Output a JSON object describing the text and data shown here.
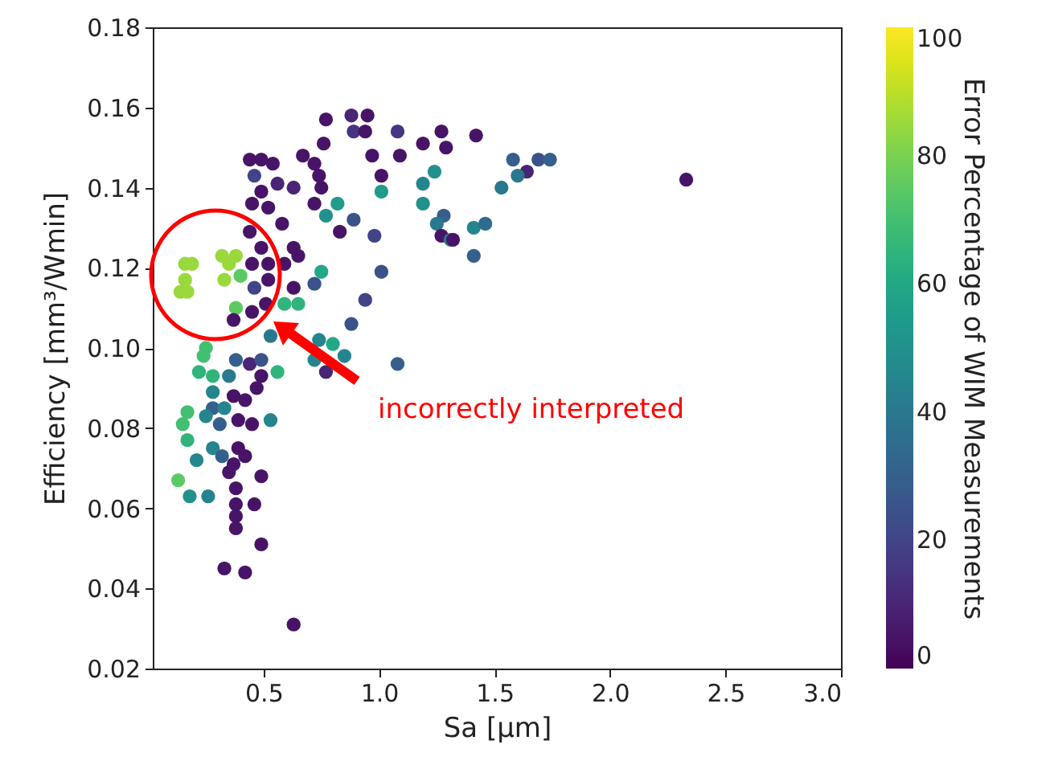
{
  "chart_data": {
    "type": "scatter",
    "xlabel": "Sa [µm]",
    "ylabel": "Efficiency [mm³/Wmin]",
    "clabel": "Error Percentage of WIM Measurements",
    "xlim": [
      0.02,
      3.0
    ],
    "xticks": [
      0.5,
      {
        "value": 1,
        "label": "1.0"
      },
      1.5,
      {
        "value": 2,
        "label": "2.0"
      },
      2.5,
      {
        "value": 3,
        "label": "3.0"
      }
    ],
    "ylim": [
      0.02,
      0.18
    ],
    "yticks": [
      0.02,
      0.04,
      0.06,
      0.08,
      {
        "value": 0.1,
        "label": "0.10"
      },
      0.12,
      0.14,
      0.16,
      0.18
    ],
    "clim": [
      0,
      100
    ],
    "cticks": [
      0,
      20,
      40,
      60,
      80,
      100
    ],
    "grid": false,
    "marker": "circle",
    "annotations": [
      "incorrectly interpreted"
    ],
    "series": [
      {
        "x": [
          0.77,
          0.88,
          0.95,
          0.89,
          0.94,
          1.08,
          1.27,
          1.29,
          1.19,
          0.76,
          0.67,
          0.97,
          1.09,
          0.44,
          0.49,
          0.54,
          0.72,
          0.74,
          1.01,
          0.46,
          0.56,
          0.49,
          0.63,
          0.75,
          0.82,
          0.77,
          0.72,
          1.01,
          1.24,
          1.19,
          1.19,
          1.28,
          1.25,
          1.27,
          1.31,
          0.89,
          0.83,
          0.98,
          0.45,
          0.52,
          0.44,
          0.58,
          0.49,
          0.63,
          0.45,
          0.52,
          0.59,
          0.65,
          0.46,
          0.52,
          0.63,
          0.75,
          0.72,
          1.01,
          0.94,
          0.65,
          0.59,
          0.51,
          0.45,
          0.38,
          0.88,
          0.37,
          0.53,
          0.74,
          0.8,
          0.16,
          0.19,
          0.16,
          0.17,
          0.14,
          0.32,
          0.38,
          0.35,
          0.33,
          0.4,
          1.42,
          1.58,
          1.69,
          1.74,
          1.64,
          1.6,
          1.53,
          1.41,
          1.46,
          1.32,
          1.41,
          2.33,
          1.08,
          0.85,
          0.72,
          0.77,
          0.25,
          0.24,
          0.38,
          0.44,
          0.49,
          0.22,
          0.28,
          0.35,
          0.49,
          0.56,
          0.47,
          0.28,
          0.37,
          0.42,
          0.28,
          0.33,
          0.17,
          0.39,
          0.45,
          0.53,
          0.15,
          0.25,
          0.31,
          0.17,
          0.28,
          0.39,
          0.32,
          0.42,
          0.21,
          0.37,
          0.35,
          0.49,
          0.13,
          0.38,
          0.18,
          0.26,
          0.38,
          0.46,
          0.38,
          0.38,
          0.49,
          0.33,
          0.42,
          0.63
        ],
        "values": [
          0.157,
          0.158,
          0.158,
          0.154,
          0.154,
          0.154,
          0.154,
          0.15,
          0.151,
          0.151,
          0.148,
          0.148,
          0.148,
          0.147,
          0.147,
          0.146,
          0.146,
          0.143,
          0.143,
          0.143,
          0.141,
          0.139,
          0.14,
          0.14,
          0.136,
          0.133,
          0.136,
          0.139,
          0.144,
          0.141,
          0.136,
          0.133,
          0.131,
          0.128,
          0.127,
          0.132,
          0.129,
          0.128,
          0.136,
          0.135,
          0.129,
          0.131,
          0.125,
          0.125,
          0.121,
          0.121,
          0.121,
          0.123,
          0.115,
          0.117,
          0.115,
          0.119,
          0.116,
          0.119,
          0.112,
          0.111,
          0.111,
          0.111,
          0.109,
          0.11,
          0.106,
          0.107,
          0.103,
          0.102,
          0.101,
          0.121,
          0.121,
          0.117,
          0.114,
          0.114,
          0.123,
          0.123,
          0.121,
          0.117,
          0.118,
          0.153,
          0.147,
          0.147,
          0.147,
          0.144,
          0.143,
          0.14,
          0.13,
          0.131,
          0.127,
          0.123,
          0.142,
          0.096,
          0.098,
          0.097,
          0.094,
          0.1,
          0.098,
          0.097,
          0.096,
          0.097,
          0.094,
          0.093,
          0.093,
          0.093,
          0.094,
          0.09,
          0.089,
          0.088,
          0.087,
          0.085,
          0.085,
          0.084,
          0.082,
          0.081,
          0.082,
          0.081,
          0.083,
          0.081,
          0.077,
          0.075,
          0.075,
          0.073,
          0.073,
          0.072,
          0.071,
          0.069,
          0.068,
          0.067,
          0.065,
          0.063,
          0.063,
          0.061,
          0.061,
          0.058,
          0.055,
          0.051,
          0.045,
          0.044,
          0.031
        ],
        "cvalues": [
          5,
          10,
          5,
          15,
          5,
          15,
          5,
          5,
          5,
          5,
          5,
          5,
          5,
          5,
          5,
          5,
          5,
          5,
          5,
          20,
          10,
          5,
          10,
          5,
          55,
          50,
          5,
          55,
          50,
          45,
          50,
          30,
          40,
          5,
          45,
          25,
          5,
          20,
          5,
          5,
          5,
          5,
          5,
          5,
          5,
          5,
          5,
          5,
          20,
          5,
          5,
          60,
          25,
          25,
          20,
          65,
          65,
          5,
          5,
          75,
          25,
          5,
          40,
          45,
          60,
          85,
          85,
          85,
          85,
          85,
          85,
          85,
          85,
          85,
          75,
          5,
          30,
          25,
          30,
          10,
          40,
          40,
          45,
          35,
          5,
          30,
          5,
          30,
          45,
          45,
          10,
          70,
          70,
          30,
          10,
          25,
          65,
          65,
          40,
          5,
          65,
          5,
          45,
          5,
          5,
          30,
          45,
          70,
          5,
          5,
          45,
          70,
          45,
          30,
          65,
          45,
          5,
          30,
          5,
          45,
          5,
          5,
          5,
          75,
          5,
          50,
          45,
          5,
          5,
          5,
          5,
          5,
          5,
          5,
          5
        ]
      }
    ]
  }
}
